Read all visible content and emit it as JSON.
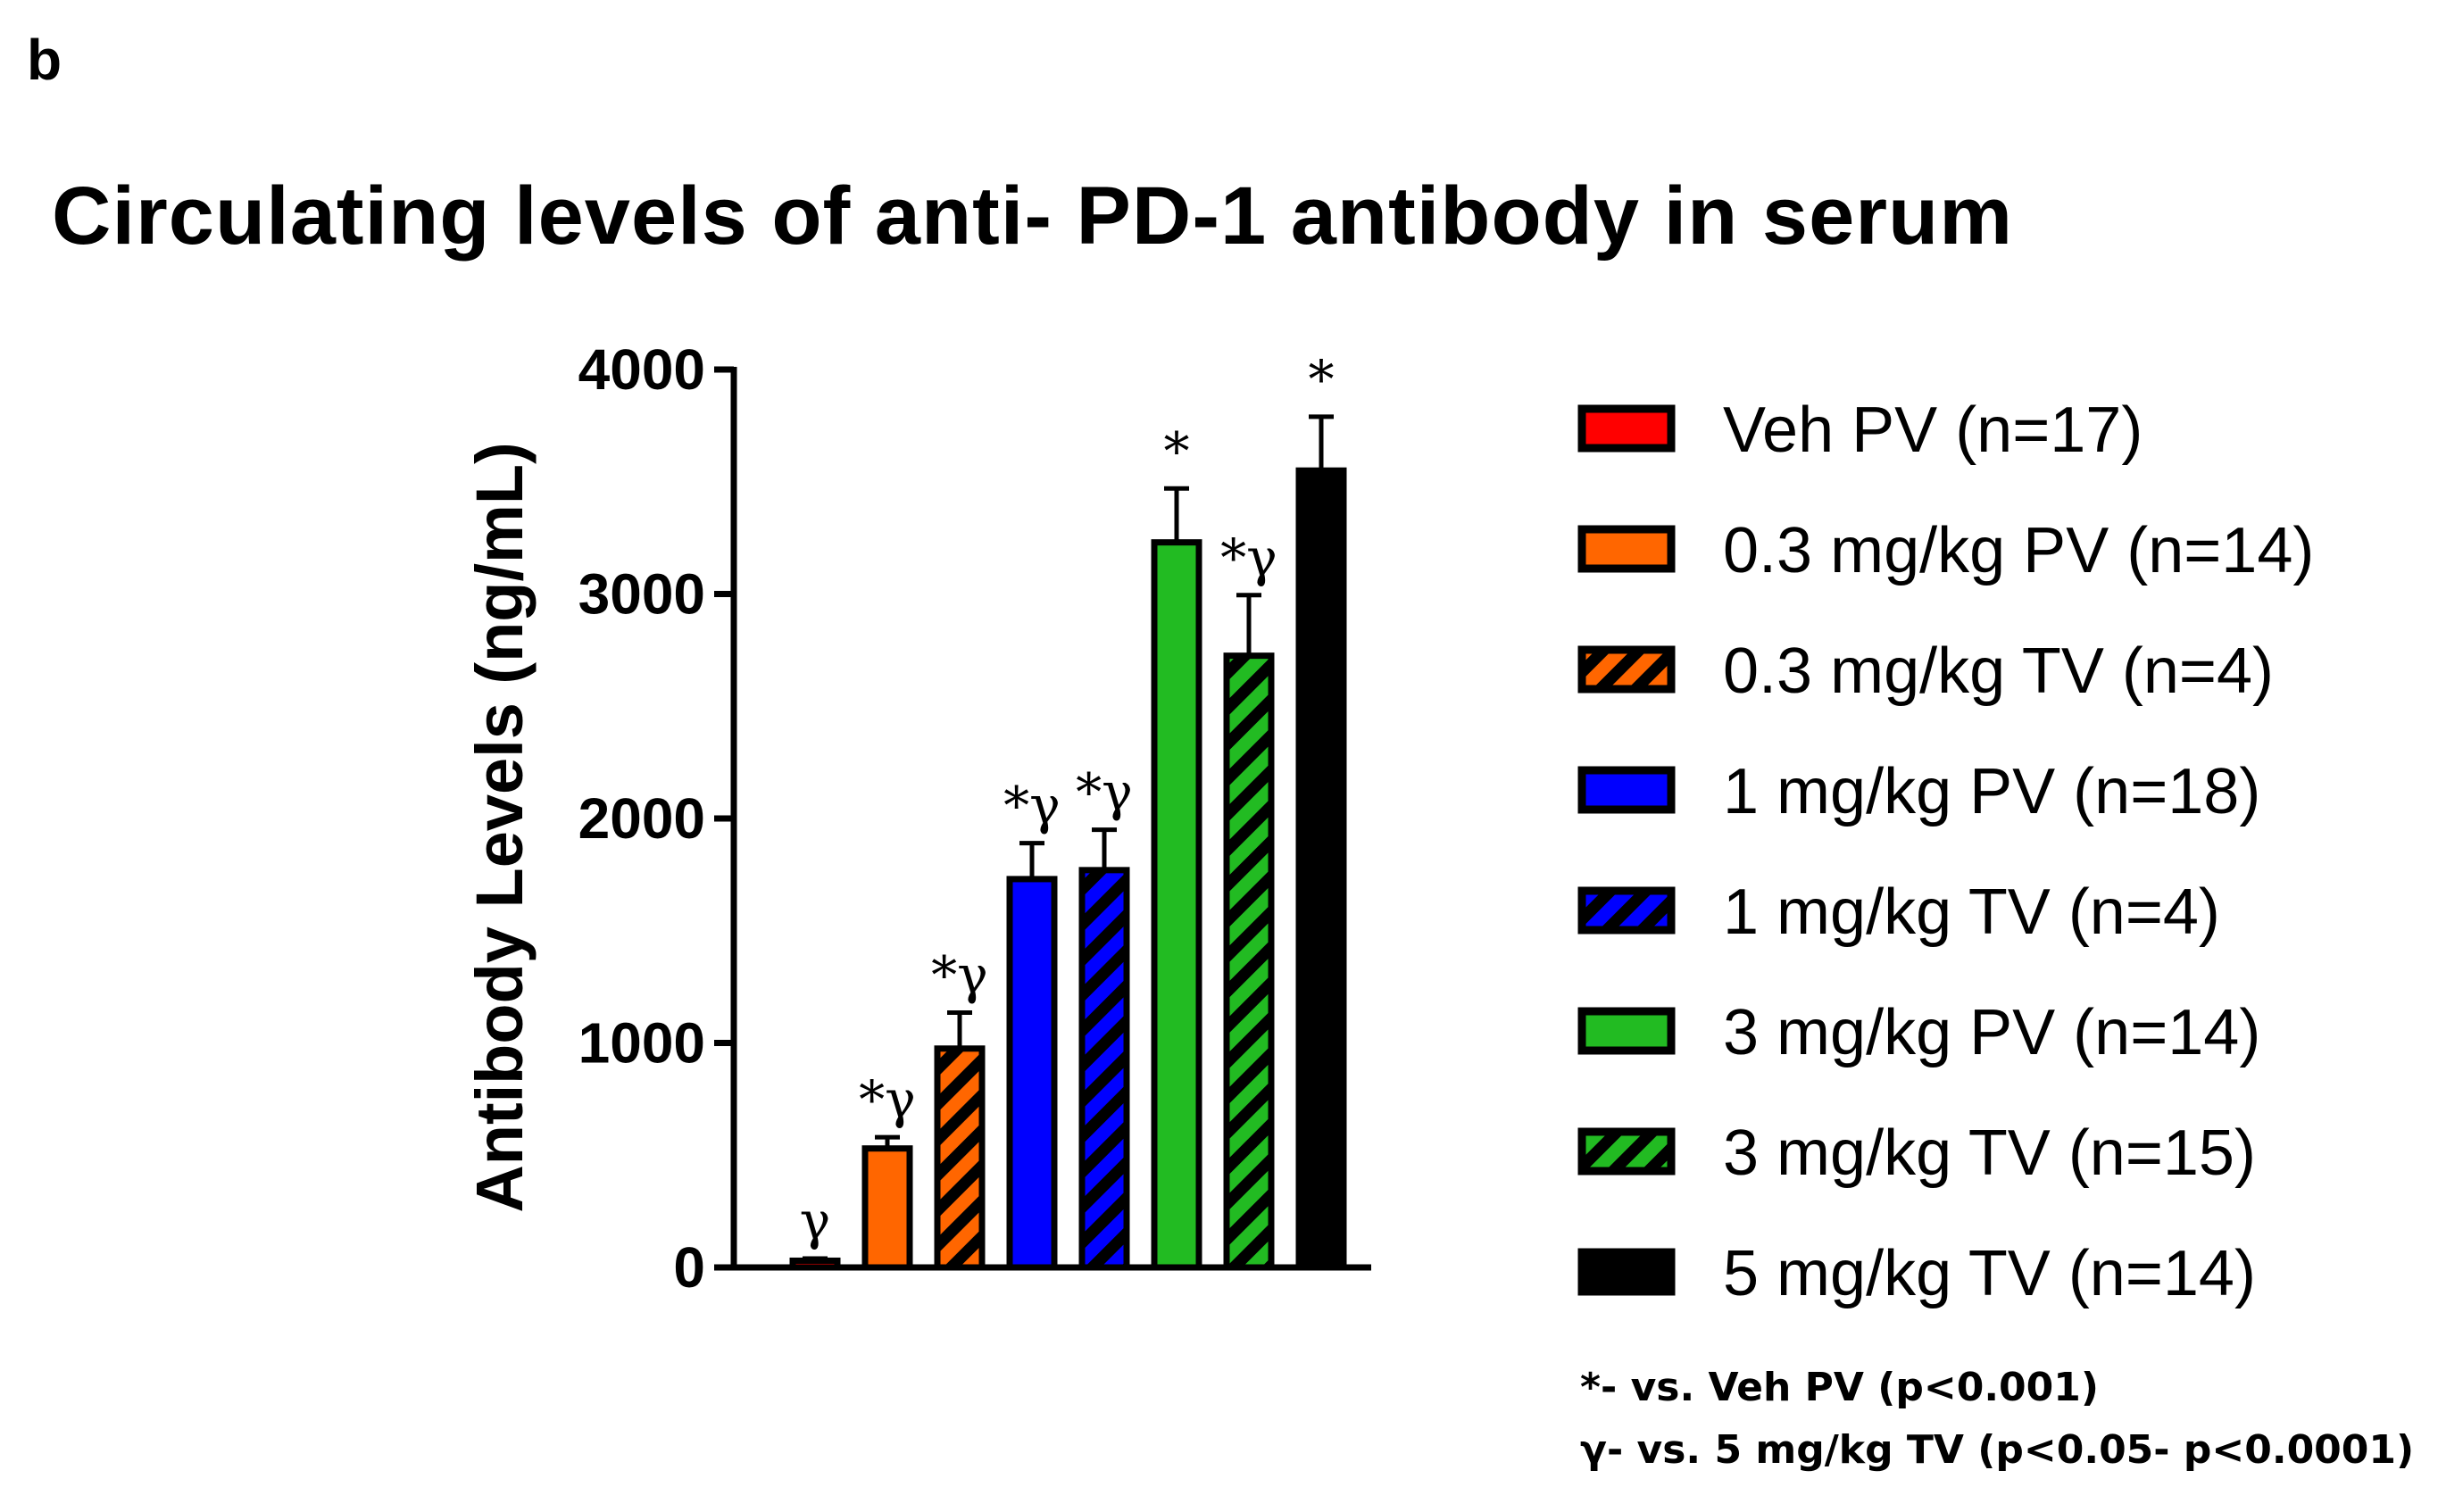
{
  "panel_label": "b",
  "chart_data": {
    "type": "bar",
    "title": "Circulating levels of anti- PD-1 antibody in serum",
    "xlabel": "",
    "ylabel": "Antibody Levels (ng/mL)",
    "ylim": [
      0,
      4000
    ],
    "yticks": [
      "0",
      "1000",
      "2000",
      "3000",
      "4000"
    ],
    "categories": [
      "Veh PV (n=17)",
      "0.3 mg/kg PV (n=14)",
      "0.3 mg/kg TV (n=4)",
      "1 mg/kg PV (n=18)",
      "1 mg/kg TV (n=4)",
      "3 mg/kg PV (n=14)",
      "3 mg/kg TV (n=15)",
      "5 mg/kg TV (n=14)"
    ],
    "values": [
      30,
      530,
      975,
      1730,
      1770,
      3230,
      2725,
      3550
    ],
    "errors": [
      10,
      50,
      160,
      160,
      180,
      240,
      270,
      240
    ],
    "colors": [
      "#ff0000",
      "#ff6600",
      "#ff6600",
      "#0000ff",
      "#0000ff",
      "#22bb22",
      "#22bb22",
      "#000000"
    ],
    "hatched": [
      false,
      false,
      true,
      false,
      true,
      false,
      true,
      false
    ],
    "significance": [
      "γ",
      "*γ",
      "*γ",
      "*γ",
      "*γ",
      "*",
      "*γ",
      "*"
    ],
    "legend_position": "right"
  },
  "footnotes": [
    "*- vs. Veh PV (p<0.001)",
    "γ- vs. 5 mg/kg TV (p<0.05- p<0.0001)"
  ]
}
